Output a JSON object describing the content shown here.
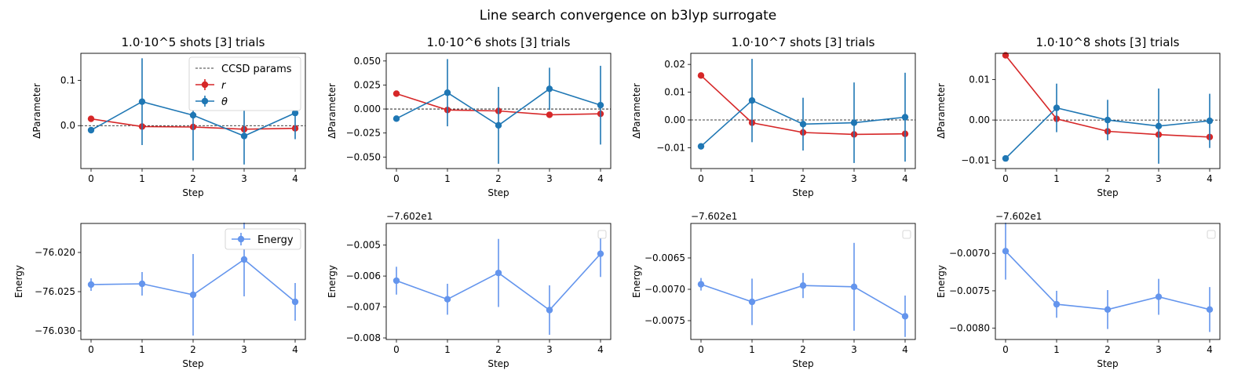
{
  "figure": {
    "title": "Line search convergence on b3lyp surrogate"
  },
  "colors": {
    "r": "#d62728",
    "theta": "#1f77b4",
    "energy": "#6495ed",
    "reference": "#000000"
  },
  "chart_data": [
    {
      "id": "p0",
      "type": "line",
      "title": "1.0·10^5 shots [3] trials",
      "xlabel": "Step",
      "ylabel": "ΔParameter",
      "xlim": [
        -0.2,
        4.2
      ],
      "ylim": [
        -0.095,
        0.16
      ],
      "xticks": [
        0,
        1,
        2,
        3,
        4
      ],
      "xtick_labels": [
        "0",
        "1",
        "2",
        "3",
        "4"
      ],
      "yticks": [
        0.0,
        0.1
      ],
      "ytick_labels": [
        "0.0",
        "0.1"
      ],
      "offset": "",
      "reference_line": {
        "y": 0,
        "label": "CCSD params"
      },
      "legend": {
        "position": "top-right",
        "entries": [
          "CCSD params",
          "r",
          "θ"
        ]
      },
      "series": [
        {
          "name": "r",
          "color": "#d62728",
          "x": [
            0,
            1,
            2,
            3,
            4
          ],
          "y": [
            0.015,
            -0.002,
            -0.003,
            -0.008,
            -0.006
          ],
          "err": [
            0.004,
            0.003,
            0.003,
            0.003,
            0.003
          ]
        },
        {
          "name": "θ",
          "color": "#1f77b4",
          "x": [
            0,
            1,
            2,
            3,
            4
          ],
          "y": [
            -0.01,
            0.053,
            0.023,
            -0.023,
            0.028
          ],
          "err": [
            0.004,
            0.096,
            0.1,
            0.063,
            0.058
          ]
        }
      ]
    },
    {
      "id": "p1",
      "type": "line",
      "title": "1.0·10^6 shots [3] trials",
      "xlabel": "Step",
      "ylabel": "ΔParameter",
      "xlim": [
        -0.2,
        4.2
      ],
      "ylim": [
        -0.062,
        0.058
      ],
      "xticks": [
        0,
        1,
        2,
        3,
        4
      ],
      "xtick_labels": [
        "0",
        "1",
        "2",
        "3",
        "4"
      ],
      "yticks": [
        -0.05,
        -0.025,
        0.0,
        0.025,
        0.05
      ],
      "ytick_labels": [
        "−0.050",
        "−0.025",
        "0.000",
        "0.025",
        "0.050"
      ],
      "offset": "",
      "reference_line": {
        "y": 0
      },
      "series": [
        {
          "name": "r",
          "color": "#d62728",
          "x": [
            0,
            1,
            2,
            3,
            4
          ],
          "y": [
            0.016,
            -0.001,
            -0.002,
            -0.006,
            -0.005
          ],
          "err": [
            0.002,
            0.002,
            0.002,
            0.002,
            0.002
          ]
        },
        {
          "name": "θ",
          "color": "#1f77b4",
          "x": [
            0,
            1,
            2,
            3,
            4
          ],
          "y": [
            -0.01,
            0.017,
            -0.017,
            0.021,
            0.004
          ],
          "err": [
            0.002,
            0.035,
            0.04,
            0.022,
            0.041
          ]
        }
      ]
    },
    {
      "id": "p2",
      "type": "line",
      "title": "1.0·10^7 shots [3] trials",
      "xlabel": "Step",
      "ylabel": "ΔParameter",
      "xlim": [
        -0.2,
        4.2
      ],
      "ylim": [
        -0.0175,
        0.024
      ],
      "xticks": [
        0,
        1,
        2,
        3,
        4
      ],
      "xtick_labels": [
        "0",
        "1",
        "2",
        "3",
        "4"
      ],
      "yticks": [
        -0.01,
        0.0,
        0.01,
        0.02
      ],
      "ytick_labels": [
        "−0.01",
        "0.00",
        "0.01",
        "0.02"
      ],
      "offset": "",
      "reference_line": {
        "y": 0
      },
      "series": [
        {
          "name": "r",
          "color": "#d62728",
          "x": [
            0,
            1,
            2,
            3,
            4
          ],
          "y": [
            0.016,
            -0.001,
            -0.0045,
            -0.0052,
            -0.005
          ],
          "err": [
            0.0005,
            0.0005,
            0.0005,
            0.0005,
            0.0005
          ]
        },
        {
          "name": "θ",
          "color": "#1f77b4",
          "x": [
            0,
            1,
            2,
            3,
            4
          ],
          "y": [
            -0.0095,
            0.007,
            -0.0015,
            -0.001,
            0.001
          ],
          "err": [
            0.0005,
            0.015,
            0.0095,
            0.0145,
            0.016
          ]
        }
      ]
    },
    {
      "id": "p3",
      "type": "line",
      "title": "1.0·10^8 shots [3] trials",
      "xlabel": "Step",
      "ylabel": "ΔParameter",
      "xlim": [
        -0.2,
        4.2
      ],
      "ylim": [
        -0.012,
        0.0165
      ],
      "xticks": [
        0,
        1,
        2,
        3,
        4
      ],
      "xtick_labels": [
        "0",
        "1",
        "2",
        "3",
        "4"
      ],
      "yticks": [
        -0.01,
        0.0,
        0.01
      ],
      "ytick_labels": [
        "−0.01",
        "0.00",
        "0.01"
      ],
      "offset": "",
      "reference_line": {
        "y": 0
      },
      "series": [
        {
          "name": "r",
          "color": "#d62728",
          "x": [
            0,
            1,
            2,
            3,
            4
          ],
          "y": [
            0.016,
            0.0003,
            -0.0028,
            -0.0036,
            -0.0042
          ],
          "err": [
            0.0003,
            0.0003,
            0.0003,
            0.0003,
            0.0003
          ]
        },
        {
          "name": "θ",
          "color": "#1f77b4",
          "x": [
            0,
            1,
            2,
            3,
            4
          ],
          "y": [
            -0.0095,
            0.003,
            0.0,
            -0.0015,
            -0.0002
          ],
          "err": [
            0.0003,
            0.006,
            0.005,
            0.0093,
            0.0067
          ]
        }
      ]
    },
    {
      "id": "e0",
      "type": "line",
      "title": "",
      "xlabel": "Step",
      "ylabel": "Energy",
      "xlim": [
        -0.2,
        4.2
      ],
      "ylim": [
        -76.0311,
        -76.0163
      ],
      "xticks": [
        0,
        1,
        2,
        3,
        4
      ],
      "xtick_labels": [
        "0",
        "1",
        "2",
        "3",
        "4"
      ],
      "yticks": [
        -76.03,
        -76.025,
        -76.02
      ],
      "ytick_labels": [
        "−76.030",
        "−76.025",
        "−76.020"
      ],
      "offset": "",
      "legend": {
        "position": "top-right",
        "entries": [
          "Energy"
        ]
      },
      "series": [
        {
          "name": "Energy",
          "color": "#6495ed",
          "x": [
            0,
            1,
            2,
            3,
            4
          ],
          "y": [
            -76.0241,
            -76.024,
            -76.0254,
            -76.0209,
            -76.0263
          ],
          "err": [
            0.0008,
            0.0015,
            0.0052,
            0.0047,
            0.0024
          ]
        }
      ]
    },
    {
      "id": "e1",
      "type": "line",
      "title": "",
      "xlabel": "Step",
      "ylabel": "Energy",
      "xlim": [
        -0.2,
        4.2
      ],
      "ylim": [
        -0.00805,
        -0.0043
      ],
      "xticks": [
        0,
        1,
        2,
        3,
        4
      ],
      "xtick_labels": [
        "0",
        "1",
        "2",
        "3",
        "4"
      ],
      "yticks": [
        -0.008,
        -0.007,
        -0.006,
        -0.005
      ],
      "ytick_labels": [
        "−0.008",
        "−0.007",
        "−0.006",
        "−0.005"
      ],
      "offset": "−7.602e1",
      "legend": {
        "position": "top-right",
        "entries": []
      },
      "series": [
        {
          "name": "",
          "color": "#6495ed",
          "x": [
            0,
            1,
            2,
            3,
            4
          ],
          "y": [
            -0.00615,
            -0.00675,
            -0.0059,
            -0.0071,
            -0.00528
          ],
          "err": [
            0.00045,
            0.0005,
            0.0011,
            0.0008,
            0.00075
          ]
        }
      ]
    },
    {
      "id": "e2",
      "type": "line",
      "title": "",
      "xlabel": "Step",
      "ylabel": "Energy",
      "xlim": [
        -0.2,
        4.2
      ],
      "ylim": [
        -0.0078,
        -0.00595
      ],
      "xticks": [
        0,
        1,
        2,
        3,
        4
      ],
      "xtick_labels": [
        "0",
        "1",
        "2",
        "3",
        "4"
      ],
      "yticks": [
        -0.0075,
        -0.007,
        -0.0065
      ],
      "ytick_labels": [
        "−0.0075",
        "−0.0070",
        "−0.0065"
      ],
      "offset": "−7.602e1",
      "legend": {
        "position": "top-right",
        "entries": []
      },
      "series": [
        {
          "name": "",
          "color": "#6495ed",
          "x": [
            0,
            1,
            2,
            3,
            4
          ],
          "y": [
            -0.00692,
            -0.0072,
            -0.00694,
            -0.00696,
            -0.00743
          ],
          "err": [
            0.0001,
            0.00037,
            0.0002,
            0.0007,
            0.00033
          ]
        }
      ]
    },
    {
      "id": "e3",
      "type": "line",
      "title": "",
      "xlabel": "Step",
      "ylabel": "Energy",
      "xlim": [
        -0.2,
        4.2
      ],
      "ylim": [
        -0.00815,
        -0.0066
      ],
      "xticks": [
        0,
        1,
        2,
        3,
        4
      ],
      "xtick_labels": [
        "0",
        "1",
        "2",
        "3",
        "4"
      ],
      "yticks": [
        -0.008,
        -0.0075,
        -0.007
      ],
      "ytick_labels": [
        "−0.0080",
        "−0.0075",
        "−0.0070"
      ],
      "offset": "−7.602e1",
      "legend": {
        "position": "top-right",
        "entries": []
      },
      "series": [
        {
          "name": "",
          "color": "#6495ed",
          "x": [
            0,
            1,
            2,
            3,
            4
          ],
          "y": [
            -0.00697,
            -0.00768,
            -0.00775,
            -0.00758,
            -0.00775
          ],
          "err": [
            0.00038,
            0.00018,
            0.00026,
            0.00024,
            0.0003
          ]
        }
      ]
    }
  ]
}
